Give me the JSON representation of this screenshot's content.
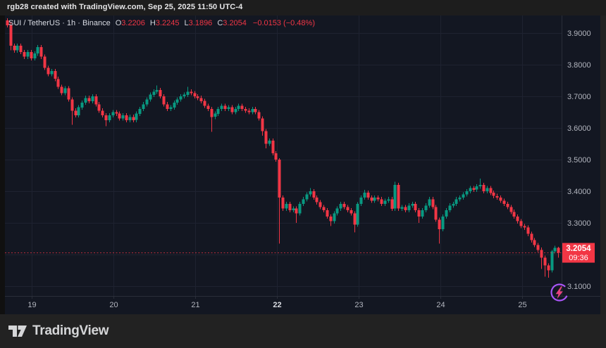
{
  "attribution": "rgb28 created with TradingView.com, Sep 25, 2025 11:50 UTC-4",
  "legend": {
    "title": "SUI / TetherUS · 1h · Binance",
    "ohlc": [
      {
        "label": "O",
        "value": "3.2206"
      },
      {
        "label": "H",
        "value": "3.2245"
      },
      {
        "label": "L",
        "value": "3.1896"
      },
      {
        "label": "C",
        "value": "3.2054"
      }
    ],
    "change": "−0.0153 (−0.48%)"
  },
  "price_scale": {
    "labels": [
      {
        "text": "3.9000",
        "price": 3.9
      },
      {
        "text": "3.8000",
        "price": 3.8
      },
      {
        "text": "3.7000",
        "price": 3.7
      },
      {
        "text": "3.6000",
        "price": 3.6
      },
      {
        "text": "3.5000",
        "price": 3.5
      },
      {
        "text": "3.4000",
        "price": 3.4
      },
      {
        "text": "3.3000",
        "price": 3.3
      },
      {
        "text": "3.1000",
        "price": 3.1
      }
    ],
    "badge": {
      "price": "3.2054",
      "countdown": "09:36"
    }
  },
  "time_scale": {
    "labels": [
      {
        "text": "19",
        "bold": false
      },
      {
        "text": "20",
        "bold": false
      },
      {
        "text": "21",
        "bold": false
      },
      {
        "text": "22",
        "bold": true
      },
      {
        "text": "23",
        "bold": false
      },
      {
        "text": "24",
        "bold": false
      },
      {
        "text": "25",
        "bold": false
      }
    ]
  },
  "branding": {
    "logo_text": "TradingView"
  },
  "colors": {
    "up": "#089981",
    "down": "#f23645",
    "badge": "#f23645",
    "badge_text": "#ffffff",
    "bg": "#131722",
    "outer_bg": "#212121",
    "grid": "#1e2230",
    "frame": "#2a2e39",
    "axis_text": "#b2b5be",
    "axis_text_bold": "#dadde3",
    "price_line": "#f23645",
    "flash_ring": "#a855f7",
    "flash_bolt": "#e8417e",
    "logo": "#d5d6d8"
  },
  "chart_data": {
    "type": "candlestick",
    "symbol": "SUI/TetherUS",
    "interval": "1h",
    "exchange": "Binance",
    "last": {
      "open": 3.2206,
      "high": 3.2245,
      "low": 3.1896,
      "close": 3.2054,
      "change": -0.0153,
      "change_pct": -0.48
    },
    "y_axis": {
      "min": 3.069,
      "max": 3.955,
      "grid": [
        3.9,
        3.8,
        3.7,
        3.6,
        3.5,
        3.4,
        3.3,
        3.2,
        3.1
      ]
    },
    "x_axis": {
      "day_labels": [
        "19",
        "20",
        "21",
        "22",
        "23",
        "24",
        "25"
      ],
      "candles_per_day": 24,
      "first_day_start_index": 8
    },
    "legend_note": "grid on, price axis right, time axis bottom, last-price dashed line at 3.2054",
    "candles": [
      [
        3.94,
        3.947,
        3.918,
        3.925
      ],
      [
        3.925,
        3.935,
        3.845,
        3.86
      ],
      [
        3.86,
        3.867,
        3.838,
        3.845
      ],
      [
        3.845,
        3.867,
        3.838,
        3.86
      ],
      [
        3.86,
        3.867,
        3.833,
        3.84
      ],
      [
        3.84,
        3.847,
        3.818,
        3.825
      ],
      [
        3.825,
        3.847,
        3.818,
        3.84
      ],
      [
        3.84,
        3.847,
        3.813,
        3.82
      ],
      [
        3.82,
        3.842,
        3.813,
        3.835
      ],
      [
        3.835,
        3.862,
        3.828,
        3.855
      ],
      [
        3.855,
        3.862,
        3.818,
        3.825
      ],
      [
        3.825,
        3.832,
        3.783,
        3.79
      ],
      [
        3.79,
        3.797,
        3.763,
        3.77
      ],
      [
        3.77,
        3.787,
        3.763,
        3.78
      ],
      [
        3.78,
        3.787,
        3.748,
        3.755
      ],
      [
        3.755,
        3.762,
        3.723,
        3.73
      ],
      [
        3.73,
        3.737,
        3.703,
        3.71
      ],
      [
        3.71,
        3.732,
        3.703,
        3.725
      ],
      [
        3.725,
        3.732,
        3.683,
        3.69
      ],
      [
        3.69,
        3.697,
        3.61,
        3.655
      ],
      [
        3.655,
        3.662,
        3.633,
        3.64
      ],
      [
        3.64,
        3.672,
        3.633,
        3.665
      ],
      [
        3.665,
        3.687,
        3.658,
        3.68
      ],
      [
        3.68,
        3.702,
        3.673,
        3.695
      ],
      [
        3.695,
        3.702,
        3.678,
        3.685
      ],
      [
        3.685,
        3.707,
        3.678,
        3.7
      ],
      [
        3.7,
        3.707,
        3.668,
        3.675
      ],
      [
        3.675,
        3.682,
        3.648,
        3.655
      ],
      [
        3.655,
        3.662,
        3.633,
        3.64
      ],
      [
        3.64,
        3.647,
        3.605,
        3.625
      ],
      [
        3.625,
        3.647,
        3.618,
        3.64
      ],
      [
        3.64,
        3.657,
        3.633,
        3.65
      ],
      [
        3.65,
        3.657,
        3.638,
        3.645
      ],
      [
        3.645,
        3.652,
        3.623,
        3.63
      ],
      [
        3.63,
        3.647,
        3.623,
        3.64
      ],
      [
        3.64,
        3.647,
        3.618,
        3.625
      ],
      [
        3.625,
        3.642,
        3.618,
        3.635
      ],
      [
        3.635,
        3.642,
        3.618,
        3.625
      ],
      [
        3.625,
        3.652,
        3.618,
        3.645
      ],
      [
        3.645,
        3.667,
        3.638,
        3.66
      ],
      [
        3.66,
        3.682,
        3.653,
        3.675
      ],
      [
        3.675,
        3.697,
        3.668,
        3.69
      ],
      [
        3.69,
        3.712,
        3.683,
        3.705
      ],
      [
        3.705,
        3.722,
        3.698,
        3.715
      ],
      [
        3.715,
        3.735,
        3.708,
        3.72
      ],
      [
        3.72,
        3.727,
        3.693,
        3.7
      ],
      [
        3.7,
        3.707,
        3.668,
        3.675
      ],
      [
        3.675,
        3.682,
        3.653,
        3.66
      ],
      [
        3.66,
        3.672,
        3.653,
        3.665
      ],
      [
        3.665,
        3.687,
        3.658,
        3.68
      ],
      [
        3.68,
        3.697,
        3.673,
        3.69
      ],
      [
        3.69,
        3.707,
        3.683,
        3.7
      ],
      [
        3.7,
        3.712,
        3.693,
        3.705
      ],
      [
        3.705,
        3.73,
        3.698,
        3.715
      ],
      [
        3.715,
        3.722,
        3.703,
        3.71
      ],
      [
        3.71,
        3.717,
        3.693,
        3.7
      ],
      [
        3.7,
        3.707,
        3.688,
        3.695
      ],
      [
        3.695,
        3.702,
        3.678,
        3.685
      ],
      [
        3.685,
        3.692,
        3.663,
        3.67
      ],
      [
        3.67,
        3.677,
        3.653,
        3.66
      ],
      [
        3.66,
        3.667,
        3.588,
        3.635
      ],
      [
        3.635,
        3.652,
        3.628,
        3.645
      ],
      [
        3.645,
        3.667,
        3.638,
        3.66
      ],
      [
        3.66,
        3.677,
        3.653,
        3.67
      ],
      [
        3.67,
        3.677,
        3.653,
        3.66
      ],
      [
        3.66,
        3.672,
        3.653,
        3.665
      ],
      [
        3.665,
        3.672,
        3.643,
        3.65
      ],
      [
        3.65,
        3.667,
        3.643,
        3.66
      ],
      [
        3.66,
        3.677,
        3.653,
        3.67
      ],
      [
        3.67,
        3.677,
        3.653,
        3.66
      ],
      [
        3.66,
        3.667,
        3.648,
        3.655
      ],
      [
        3.655,
        3.662,
        3.643,
        3.65
      ],
      [
        3.65,
        3.667,
        3.643,
        3.66
      ],
      [
        3.66,
        3.667,
        3.643,
        3.65
      ],
      [
        3.65,
        3.657,
        3.623,
        3.63
      ],
      [
        3.63,
        3.637,
        3.575,
        3.59
      ],
      [
        3.59,
        3.597,
        3.535,
        3.55
      ],
      [
        3.55,
        3.567,
        3.543,
        3.56
      ],
      [
        3.56,
        3.567,
        3.513,
        3.52
      ],
      [
        3.52,
        3.527,
        3.493,
        3.5
      ],
      [
        3.5,
        3.505,
        3.235,
        3.38
      ],
      [
        3.38,
        3.387,
        3.338,
        3.345
      ],
      [
        3.345,
        3.367,
        3.338,
        3.36
      ],
      [
        3.36,
        3.367,
        3.333,
        3.34
      ],
      [
        3.34,
        3.352,
        3.333,
        3.345
      ],
      [
        3.345,
        3.352,
        3.3,
        3.33
      ],
      [
        3.33,
        3.367,
        3.323,
        3.36
      ],
      [
        3.36,
        3.382,
        3.353,
        3.375
      ],
      [
        3.375,
        3.397,
        3.368,
        3.39
      ],
      [
        3.39,
        3.41,
        3.383,
        3.4
      ],
      [
        3.4,
        3.407,
        3.373,
        3.38
      ],
      [
        3.38,
        3.387,
        3.358,
        3.365
      ],
      [
        3.365,
        3.372,
        3.343,
        3.35
      ],
      [
        3.35,
        3.357,
        3.333,
        3.34
      ],
      [
        3.34,
        3.347,
        3.313,
        3.32
      ],
      [
        3.32,
        3.327,
        3.29,
        3.305
      ],
      [
        3.305,
        3.337,
        3.298,
        3.33
      ],
      [
        3.33,
        3.352,
        3.323,
        3.345
      ],
      [
        3.345,
        3.367,
        3.338,
        3.36
      ],
      [
        3.36,
        3.367,
        3.343,
        3.35
      ],
      [
        3.35,
        3.357,
        3.333,
        3.34
      ],
      [
        3.34,
        3.347,
        3.323,
        3.33
      ],
      [
        3.33,
        3.337,
        3.27,
        3.295
      ],
      [
        3.295,
        3.365,
        3.288,
        3.36
      ],
      [
        3.36,
        3.387,
        3.353,
        3.38
      ],
      [
        3.38,
        3.405,
        3.373,
        3.395
      ],
      [
        3.395,
        3.402,
        3.373,
        3.38
      ],
      [
        3.38,
        3.387,
        3.363,
        3.37
      ],
      [
        3.37,
        3.387,
        3.363,
        3.38
      ],
      [
        3.38,
        3.387,
        3.368,
        3.375
      ],
      [
        3.375,
        3.382,
        3.353,
        3.36
      ],
      [
        3.36,
        3.377,
        3.353,
        3.37
      ],
      [
        3.37,
        3.382,
        3.363,
        3.375
      ],
      [
        3.375,
        3.382,
        3.338,
        3.345
      ],
      [
        3.345,
        3.43,
        3.338,
        3.42
      ],
      [
        3.42,
        3.427,
        3.338,
        3.345
      ],
      [
        3.345,
        3.357,
        3.338,
        3.35
      ],
      [
        3.35,
        3.357,
        3.333,
        3.34
      ],
      [
        3.34,
        3.362,
        3.333,
        3.355
      ],
      [
        3.355,
        3.367,
        3.348,
        3.36
      ],
      [
        3.36,
        3.367,
        3.333,
        3.34
      ],
      [
        3.34,
        3.347,
        3.3,
        3.32
      ],
      [
        3.32,
        3.347,
        3.313,
        3.34
      ],
      [
        3.34,
        3.362,
        3.333,
        3.355
      ],
      [
        3.355,
        3.382,
        3.348,
        3.375
      ],
      [
        3.375,
        3.382,
        3.343,
        3.35
      ],
      [
        3.35,
        3.357,
        3.303,
        3.31
      ],
      [
        3.31,
        3.317,
        3.235,
        3.28
      ],
      [
        3.28,
        3.327,
        3.273,
        3.32
      ],
      [
        3.32,
        3.347,
        3.313,
        3.34
      ],
      [
        3.34,
        3.362,
        3.333,
        3.355
      ],
      [
        3.355,
        3.367,
        3.348,
        3.36
      ],
      [
        3.36,
        3.382,
        3.353,
        3.375
      ],
      [
        3.375,
        3.387,
        3.368,
        3.38
      ],
      [
        3.38,
        3.397,
        3.373,
        3.39
      ],
      [
        3.39,
        3.407,
        3.383,
        3.4
      ],
      [
        3.4,
        3.417,
        3.393,
        3.41
      ],
      [
        3.41,
        3.417,
        3.398,
        3.405
      ],
      [
        3.405,
        3.422,
        3.398,
        3.415
      ],
      [
        3.415,
        3.44,
        3.408,
        3.42
      ],
      [
        3.42,
        3.427,
        3.393,
        3.4
      ],
      [
        3.4,
        3.417,
        3.393,
        3.41
      ],
      [
        3.41,
        3.417,
        3.388,
        3.395
      ],
      [
        3.395,
        3.402,
        3.378,
        3.385
      ],
      [
        3.385,
        3.392,
        3.373,
        3.38
      ],
      [
        3.38,
        3.387,
        3.363,
        3.37
      ],
      [
        3.37,
        3.377,
        3.353,
        3.36
      ],
      [
        3.36,
        3.367,
        3.343,
        3.35
      ],
      [
        3.35,
        3.357,
        3.328,
        3.335
      ],
      [
        3.335,
        3.342,
        3.313,
        3.32
      ],
      [
        3.32,
        3.327,
        3.298,
        3.305
      ],
      [
        3.305,
        3.312,
        3.283,
        3.29
      ],
      [
        3.29,
        3.297,
        3.278,
        3.285
      ],
      [
        3.285,
        3.292,
        3.258,
        3.265
      ],
      [
        3.265,
        3.272,
        3.238,
        3.245
      ],
      [
        3.245,
        3.252,
        3.223,
        3.23
      ],
      [
        3.23,
        3.237,
        3.208,
        3.215
      ],
      [
        3.215,
        3.222,
        3.155,
        3.19
      ],
      [
        3.19,
        3.197,
        3.13,
        3.165
      ],
      [
        3.165,
        3.172,
        3.127,
        3.15
      ],
      [
        3.15,
        3.215,
        3.143,
        3.21
      ],
      [
        3.21,
        3.228,
        3.203,
        3.2206
      ],
      [
        3.2206,
        3.2245,
        3.1896,
        3.2054
      ]
    ]
  }
}
